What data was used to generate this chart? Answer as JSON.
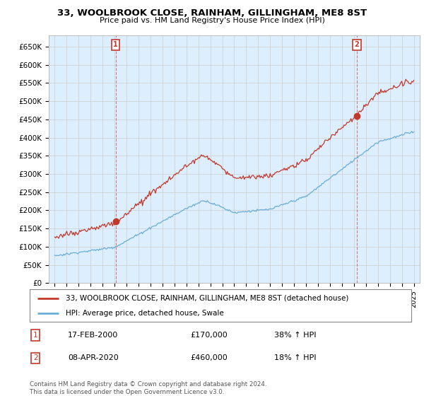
{
  "title": "33, WOOLBROOK CLOSE, RAINHAM, GILLINGHAM, ME8 8ST",
  "subtitle": "Price paid vs. HM Land Registry's House Price Index (HPI)",
  "legend_line1": "33, WOOLBROOK CLOSE, RAINHAM, GILLINGHAM, ME8 8ST (detached house)",
  "legend_line2": "HPI: Average price, detached house, Swale",
  "transaction1_date": "17-FEB-2000",
  "transaction1_price": "£170,000",
  "transaction1_hpi": "38% ↑ HPI",
  "transaction2_date": "08-APR-2020",
  "transaction2_price": "£460,000",
  "transaction2_hpi": "18% ↑ HPI",
  "footer": "Contains HM Land Registry data © Crown copyright and database right 2024.\nThis data is licensed under the Open Government Licence v3.0.",
  "hpi_color": "#6baed6",
  "price_color": "#c0392b",
  "grid_color": "#cccccc",
  "background_color": "#ffffff",
  "plot_bg_color": "#ddeeff",
  "ylim": [
    0,
    680000
  ],
  "yticks": [
    0,
    50000,
    100000,
    150000,
    200000,
    250000,
    300000,
    350000,
    400000,
    450000,
    500000,
    550000,
    600000,
    650000
  ],
  "ytick_labels": [
    "£0",
    "£50K",
    "£100K",
    "£150K",
    "£200K",
    "£250K",
    "£300K",
    "£350K",
    "£400K",
    "£450K",
    "£500K",
    "£550K",
    "£600K",
    "£650K"
  ]
}
